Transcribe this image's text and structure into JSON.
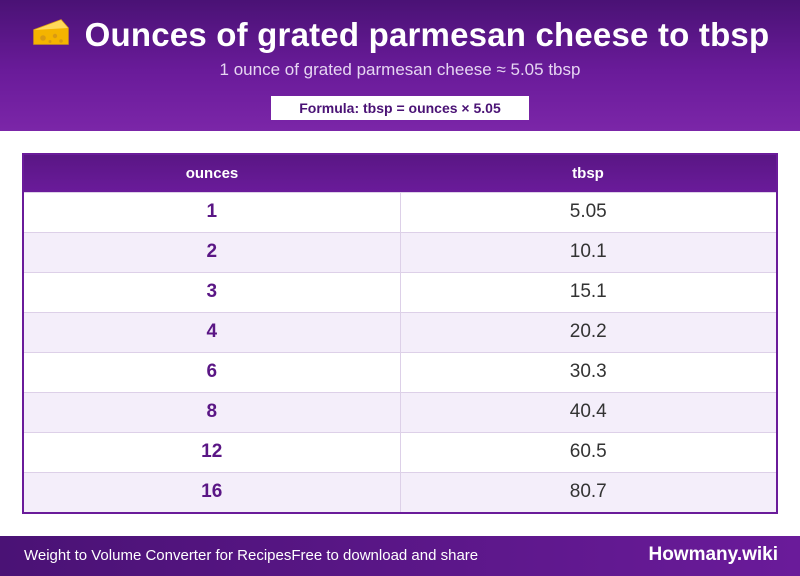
{
  "header": {
    "icon": "cheese-icon",
    "title": "Ounces of grated parmesan cheese to tbsp",
    "subtitle": "1 ounce of grated parmesan cheese ≈ 5.05 tbsp",
    "formula": "Formula: tbsp = ounces × 5.05"
  },
  "table": {
    "columns": [
      "ounces",
      "tbsp"
    ],
    "rows": [
      [
        "1",
        "5.05"
      ],
      [
        "2",
        "10.1"
      ],
      [
        "3",
        "15.1"
      ],
      [
        "4",
        "20.2"
      ],
      [
        "6",
        "30.3"
      ],
      [
        "8",
        "40.4"
      ],
      [
        "12",
        "60.5"
      ],
      [
        "16",
        "80.7"
      ]
    ]
  },
  "footer": {
    "left_text": "Weight to Volume Converter for RecipesFree to download and share",
    "brand": "Howmany.wiki"
  },
  "colors": {
    "accent": "#6a1b9a",
    "accent_dark": "#4a1275",
    "row_alt": "#f4eefa"
  }
}
